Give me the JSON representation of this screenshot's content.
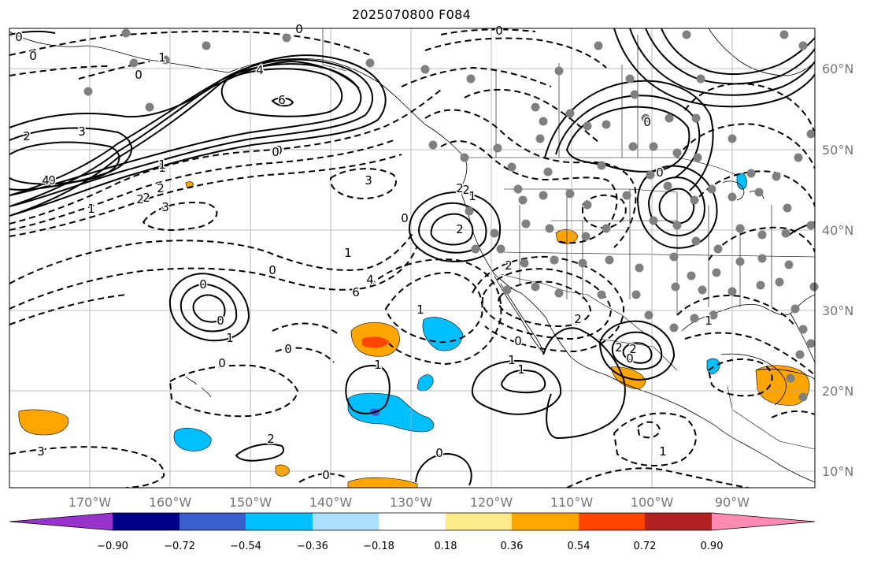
{
  "title": "2025070800 F084",
  "lat_labels": [
    "60°N",
    "50°N",
    "40°N",
    "30°N",
    "20°N",
    "10°N"
  ],
  "lon_labels": [
    "170°W",
    "160°W",
    "150°W",
    "140°W",
    "130°W",
    "120°W",
    "110°W",
    "100°W",
    "90°W"
  ],
  "colorbar": {
    "tick_labels": [
      "−0.90",
      "−0.72",
      "−0.54",
      "−0.36",
      "−0.18",
      "0.18",
      "0.36",
      "0.54",
      "0.72",
      "0.90"
    ],
    "colors": [
      "#9932CC",
      "#00008B",
      "#3A5FCD",
      "#00BFFF",
      "#ADDFFF",
      "#FFFFFF",
      "#FFEB8C",
      "#FFA500",
      "#FF4500",
      "#B22222",
      "#FF8CB0"
    ]
  },
  "contour_labels": [
    "0",
    "0",
    "1",
    "0",
    "4",
    "6",
    "2",
    "3",
    "2",
    "1",
    "0",
    "0",
    "4",
    "2",
    "2",
    "3",
    "1",
    "3",
    "0",
    "2",
    "2",
    "1",
    "0",
    "1",
    "2",
    "0",
    "0",
    "1",
    "0",
    "0",
    "1",
    "3",
    "2",
    "6",
    "4",
    "0",
    "0",
    "2",
    "2",
    "1",
    "1",
    "2",
    "0",
    "0",
    "0",
    "0",
    "2",
    "1",
    "1",
    "0",
    "1",
    "0",
    "1",
    "0"
  ]
}
